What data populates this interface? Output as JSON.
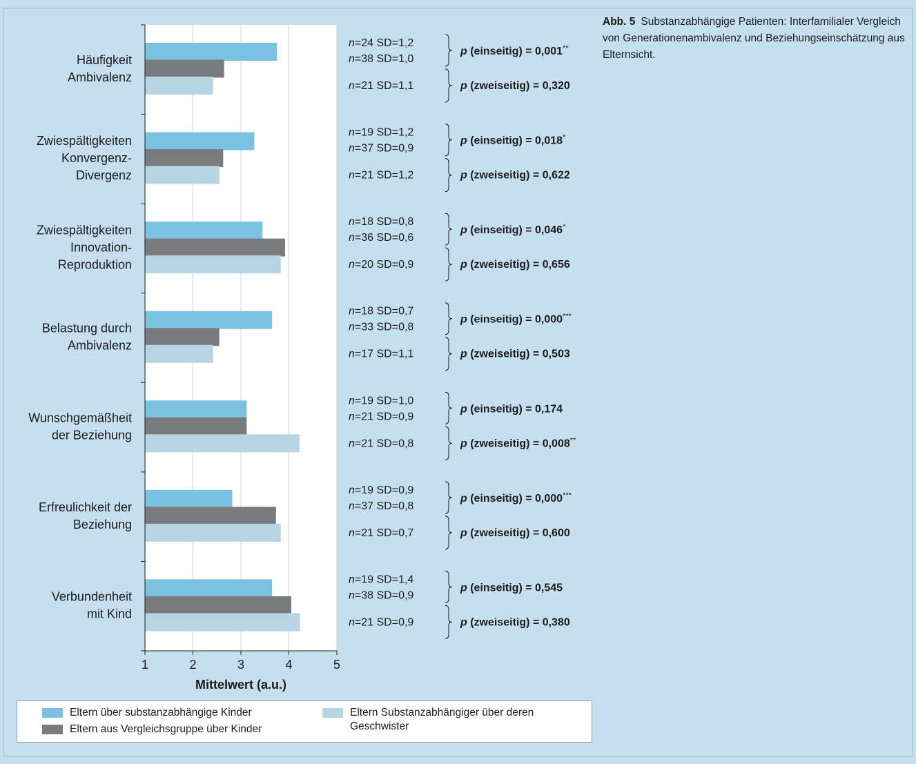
{
  "caption": {
    "label": "Abb. 5",
    "text": "Substanzabhängige Patienten: Interfamilialer Vergleich von Generationenambivalenz und Beziehungseinschätzung aus Elternsicht."
  },
  "colors": {
    "series1": "#7bc2e0",
    "series2": "#7a7b7e",
    "series3": "#b5d4e4",
    "background": "#c5dfee",
    "plot": "#ffffff"
  },
  "chart_data": {
    "type": "bar",
    "orientation": "horizontal",
    "xlabel": "Mittelwert (a.u.)",
    "xlim": [
      1,
      5
    ],
    "xticks": [
      1,
      2,
      3,
      4,
      5
    ],
    "grid": true,
    "categories": [
      [
        "Häufigkeit",
        "Ambivalenz"
      ],
      [
        "Zwiespältigkeiten",
        "Konvergenz-",
        "Divergenz"
      ],
      [
        "Zwiespältigkeiten",
        "Innovation-",
        "Reproduktion"
      ],
      [
        "Belastung durch",
        "Ambivalenz"
      ],
      [
        "Wunschgemäßheit",
        "der Beziehung"
      ],
      [
        "Erfreulichkeit der",
        "Beziehung"
      ],
      [
        "Verbundenheit",
        "mit Kind"
      ]
    ],
    "series": [
      {
        "name": "Eltern über substanzabhängige Kinder",
        "values": [
          3.75,
          3.28,
          3.45,
          3.65,
          3.12,
          2.82,
          3.65
        ]
      },
      {
        "name": "Eltern aus Vergleichsgruppe über Kinder",
        "values": [
          2.65,
          2.63,
          3.92,
          2.55,
          3.12,
          3.73,
          4.05
        ]
      },
      {
        "name": "Eltern Substanzabhängiger über deren Geschwister",
        "values": [
          2.42,
          2.55,
          3.83,
          2.42,
          4.22,
          3.83,
          4.23
        ]
      }
    ],
    "annotations": [
      {
        "n1": "24",
        "sd1": "1,2",
        "n2": "38",
        "sd2": "1,0",
        "n3": "21",
        "sd3": "1,1",
        "p1": "0,001",
        "sig1": "**",
        "p2": "0,320",
        "sig2": ""
      },
      {
        "n1": "19",
        "sd1": "1,2",
        "n2": "37",
        "sd2": "0,9",
        "n3": "21",
        "sd3": "1,2",
        "p1": "0,018",
        "sig1": "*",
        "p2": "0,622",
        "sig2": ""
      },
      {
        "n1": "18",
        "sd1": "0,8",
        "n2": "36",
        "sd2": "0,6",
        "n3": "20",
        "sd3": "0,9",
        "p1": "0,046",
        "sig1": "*",
        "p2": "0,656",
        "sig2": ""
      },
      {
        "n1": "18",
        "sd1": "0,7",
        "n2": "33",
        "sd2": "0,8",
        "n3": "17",
        "sd3": "1,1",
        "p1": "0,000",
        "sig1": "***",
        "p2": "0,503",
        "sig2": ""
      },
      {
        "n1": "19",
        "sd1": "1,0",
        "n2": "21",
        "sd2": "0,9",
        "n3": "21",
        "sd3": "0,8",
        "p1": "0,174",
        "sig1": "",
        "p2": "0,008",
        "sig2": "**"
      },
      {
        "n1": "19",
        "sd1": "0,9",
        "n2": "37",
        "sd2": "0,8",
        "n3": "21",
        "sd3": "0,7",
        "p1": "0,000",
        "sig1": "***",
        "p2": "0,600",
        "sig2": ""
      },
      {
        "n1": "19",
        "sd1": "1,4",
        "n2": "38",
        "sd2": "0,9",
        "n3": "21",
        "sd3": "0,9",
        "p1": "0,545",
        "sig1": "",
        "p2": "0,380",
        "sig2": ""
      }
    ],
    "labels": {
      "n": "n",
      "sd": "SD",
      "eq": "=",
      "p": "p",
      "one_sided": "(einseitig)",
      "two_sided": "(zweiseitig)"
    },
    "legend_position": "bottom"
  },
  "legend": {
    "items": [
      {
        "label": "Eltern über substanzabhängige Kinder"
      },
      {
        "label": "Eltern aus Vergleichsgruppe über Kinder"
      },
      {
        "label": "Eltern Substanzabhängiger über deren Geschwister"
      }
    ]
  }
}
